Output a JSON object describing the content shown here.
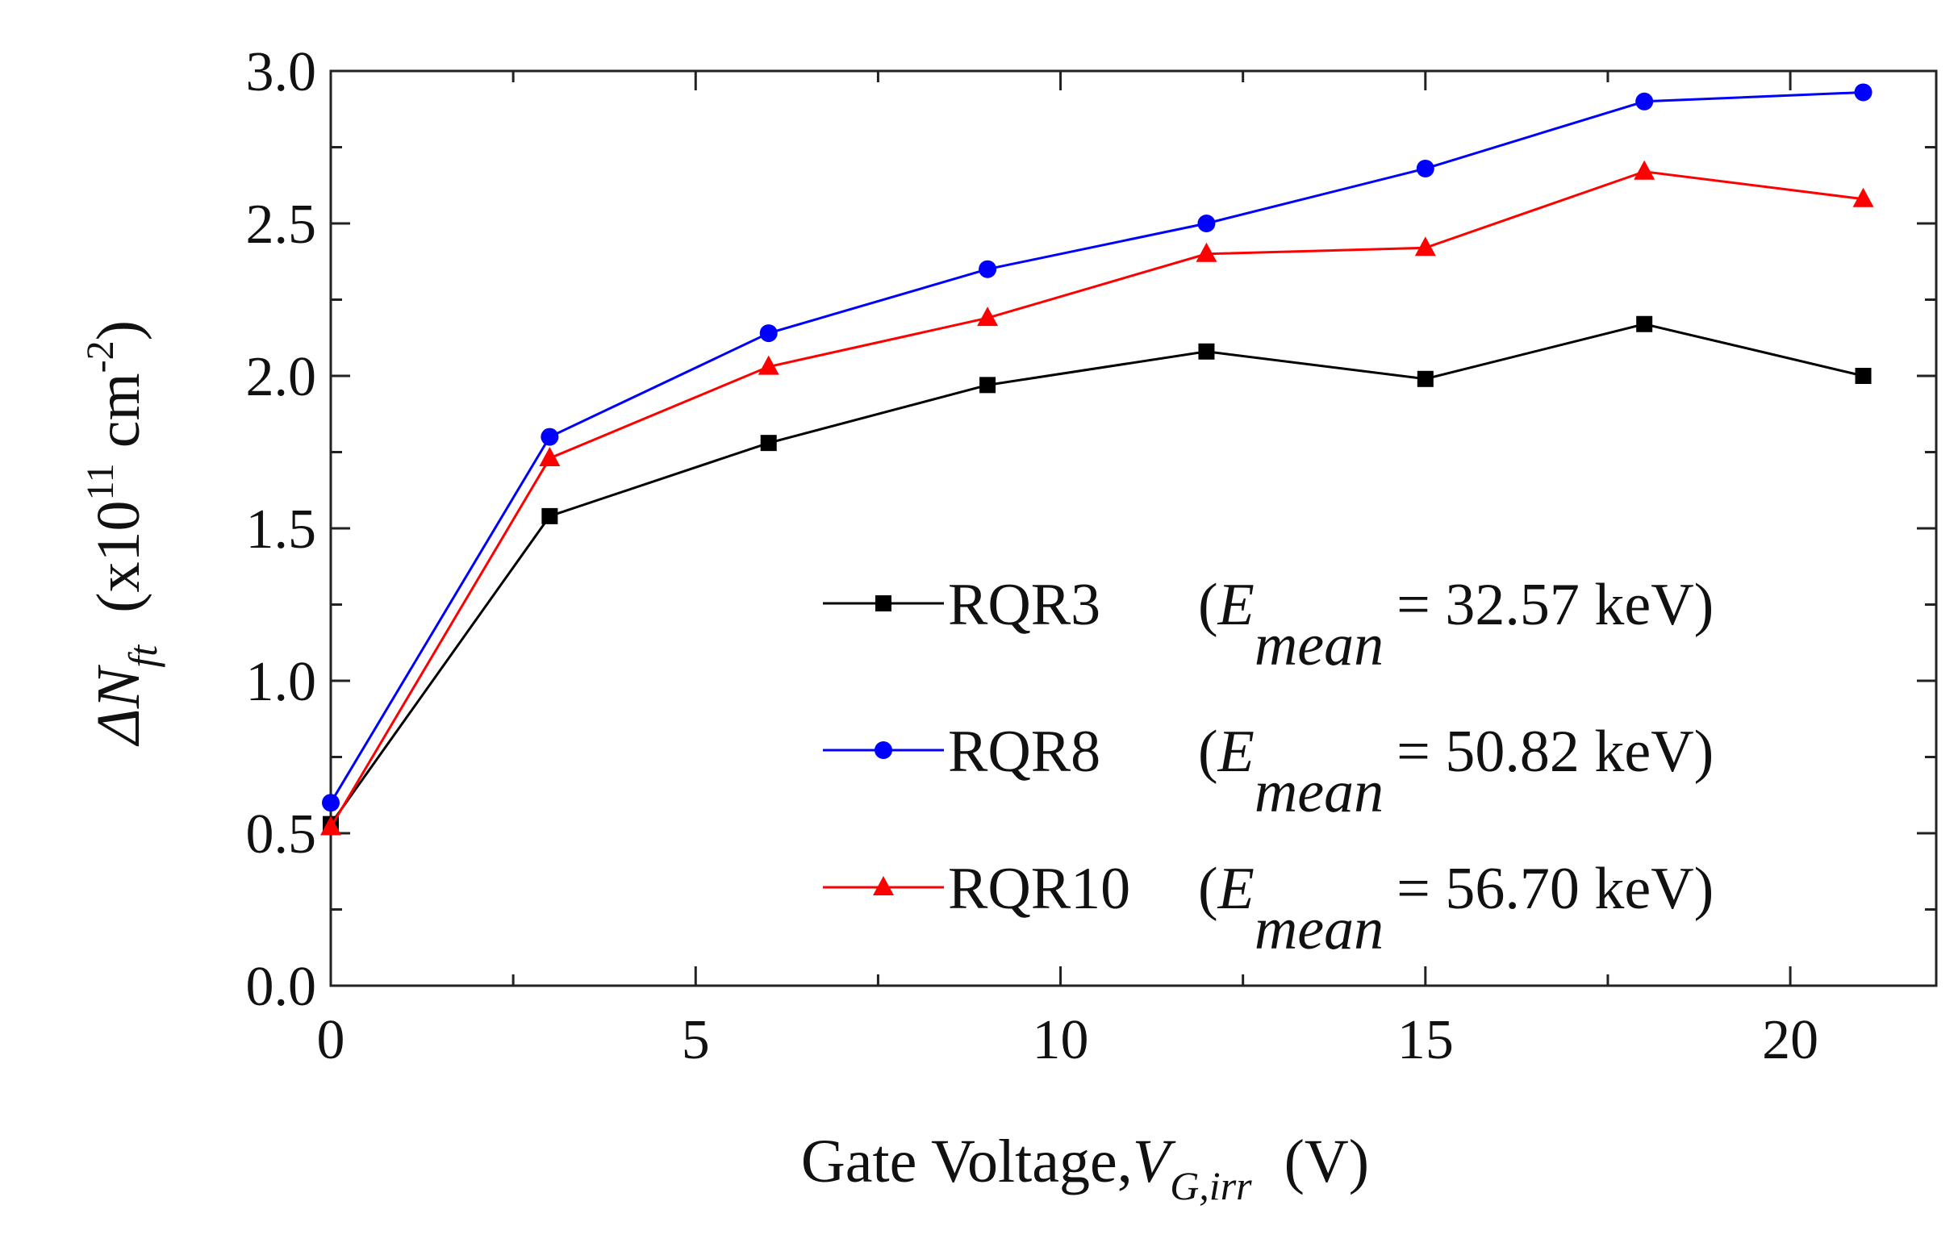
{
  "chart_data": {
    "type": "line",
    "x": [
      0,
      3,
      6,
      9,
      12,
      15,
      18,
      21
    ],
    "series": [
      {
        "name": "RQR3",
        "energy_label": "E",
        "energy_subscript": "mean",
        "energy_value": "= 32.57 keV)",
        "color": "#000000",
        "marker": "square",
        "values": [
          0.53,
          1.54,
          1.78,
          1.97,
          2.08,
          1.99,
          2.17,
          2.0
        ]
      },
      {
        "name": "RQR8",
        "energy_label": "E",
        "energy_subscript": "mean",
        "energy_value": "= 50.82 keV)",
        "color": "#0000ff",
        "marker": "circle",
        "values": [
          0.6,
          1.8,
          2.14,
          2.35,
          2.5,
          2.68,
          2.9,
          2.93
        ]
      },
      {
        "name": "RQR10",
        "energy_label": "E",
        "energy_subscript": "mean",
        "energy_value": "= 56.70 keV)",
        "color": "#ff0000",
        "marker": "triangle",
        "values": [
          0.52,
          1.73,
          2.03,
          2.19,
          2.4,
          2.42,
          2.67,
          2.58
        ]
      }
    ],
    "xlabel": {
      "main": "Gate Voltage,",
      "var": "V",
      "sub": "G,irr",
      "unit": "(V)"
    },
    "ylabel": {
      "delta": "ΔN",
      "sub": "ft",
      "unit_open": "(x10",
      "exp1": "11",
      "unit_mid": " cm",
      "exp2": "-2",
      "unit_close": ")"
    },
    "xlim": [
      0,
      22
    ],
    "ylim": [
      0,
      3.0
    ],
    "xticks": [
      0,
      5,
      10,
      15,
      20
    ],
    "xticklabels": [
      "0",
      "5",
      "10",
      "15",
      "20"
    ],
    "yticks": [
      0,
      0.5,
      1.0,
      1.5,
      2.0,
      2.5,
      3.0
    ],
    "yticklabels": [
      "0.0",
      "0.5",
      "1.0",
      "1.5",
      "2.0",
      "2.5",
      "3.0"
    ],
    "grid": false,
    "legend": "bottom-right"
  }
}
